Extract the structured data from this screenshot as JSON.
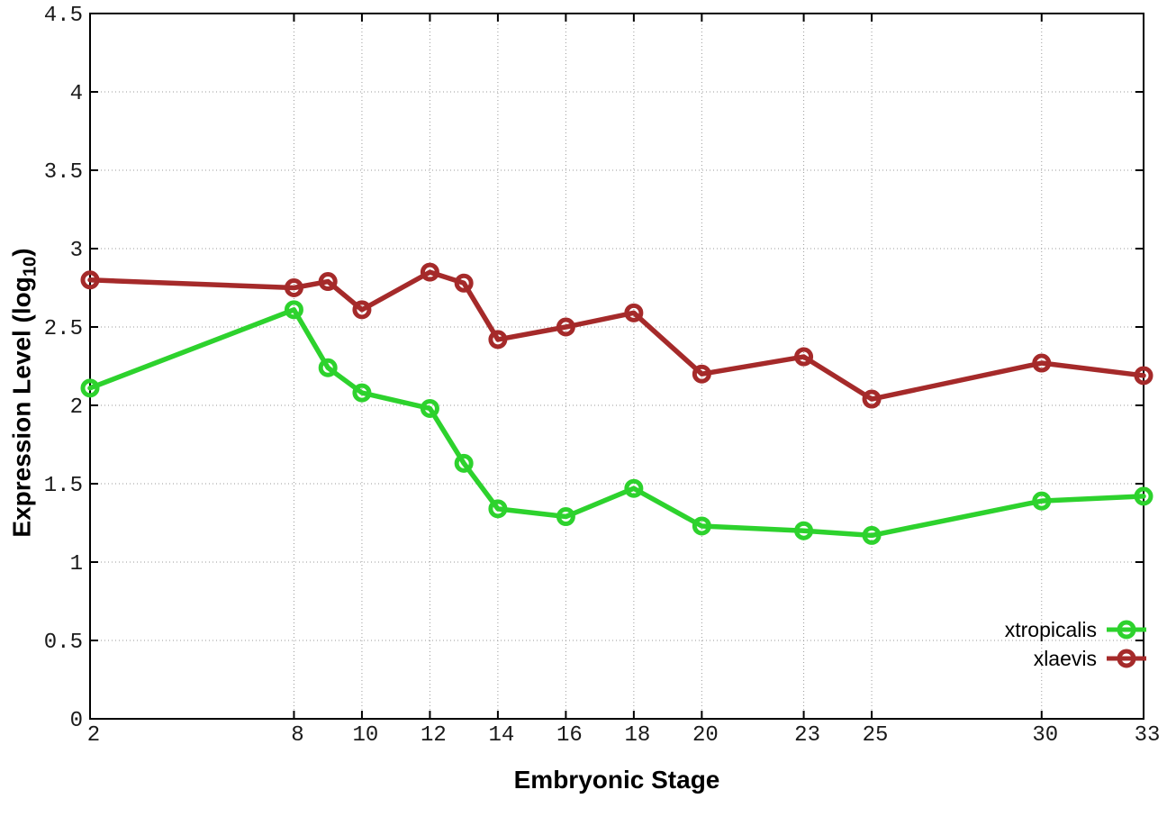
{
  "chart_data": {
    "type": "line",
    "title": "",
    "xlabel": "Embryonic Stage",
    "ylabel": "Expression Level (log10)",
    "ylabel_parts": {
      "main": "Expression Level (log",
      "sub": "10",
      "suffix": ")"
    },
    "x": [
      2,
      8,
      9,
      10,
      12,
      13,
      14,
      16,
      18,
      20,
      23,
      25,
      30,
      33
    ],
    "series": [
      {
        "name": "xtropicalis",
        "color": "#2dd22d",
        "marker": "open-circle",
        "values": [
          2.11,
          2.61,
          2.24,
          2.08,
          1.98,
          1.63,
          1.34,
          1.29,
          1.47,
          1.23,
          1.2,
          1.17,
          1.39,
          1.42
        ]
      },
      {
        "name": "xlaevis",
        "color": "#a52a2a",
        "marker": "open-circle",
        "values": [
          2.8,
          2.75,
          2.79,
          2.61,
          2.85,
          2.78,
          2.42,
          2.5,
          2.59,
          2.2,
          2.31,
          2.04,
          2.27,
          2.19
        ]
      }
    ],
    "xlim": [
      2,
      33
    ],
    "ylim": [
      0,
      4.5
    ],
    "xticks": [
      "2",
      "8",
      "10",
      "12",
      "14",
      "16",
      "18",
      "20",
      "23",
      "25",
      "30",
      "33"
    ],
    "yticks": [
      "0",
      "0.5",
      "1",
      "1.5",
      "2",
      "2.5",
      "3",
      "3.5",
      "4",
      "4.5"
    ],
    "grid": true,
    "grid_style": "dotted",
    "legend_position": "inside-bottom-right",
    "colors": {
      "axis": "#000000",
      "grid": "#9a9a9a",
      "tick_label": "#1a1a1a",
      "background": "#ffffff"
    }
  }
}
